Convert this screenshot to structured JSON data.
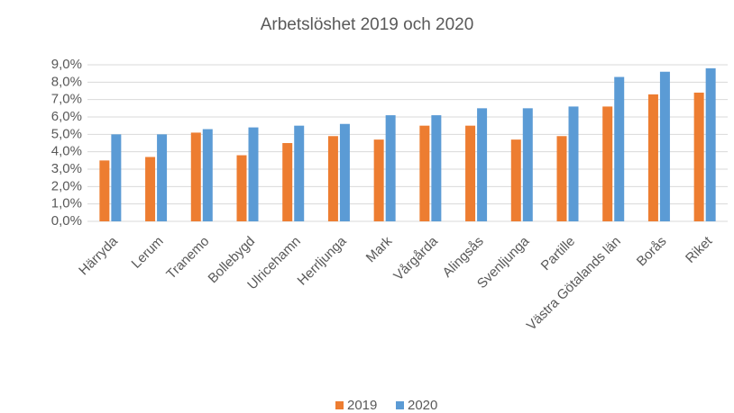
{
  "chart_data": {
    "type": "bar",
    "title": "Arbetslöshet 2019 och 2020",
    "categories": [
      "Härryda",
      "Lerum",
      "Tranemo",
      "Bollebygd",
      "Ulricehamn",
      "Herrljunga",
      "Mark",
      "Vårgårda",
      "Alingsås",
      "Svenljunga",
      "Partille",
      "Västra Götalands län",
      "Borås",
      "Riket"
    ],
    "series": [
      {
        "name": "2019",
        "color": "#ed7d31",
        "values": [
          3.5,
          3.7,
          5.1,
          3.8,
          4.5,
          4.9,
          4.7,
          5.5,
          5.5,
          4.7,
          4.9,
          6.6,
          7.3,
          7.4
        ]
      },
      {
        "name": "2020",
        "color": "#5b9bd5",
        "values": [
          5.0,
          5.0,
          5.3,
          5.4,
          5.5,
          5.6,
          6.1,
          6.1,
          6.5,
          6.5,
          6.6,
          8.3,
          8.6,
          8.8
        ]
      }
    ],
    "ylim": [
      0,
      9
    ],
    "yticks": [
      {
        "value": 0,
        "label": "0,0%"
      },
      {
        "value": 1,
        "label": "1,0%"
      },
      {
        "value": 2,
        "label": "2,0%"
      },
      {
        "value": 3,
        "label": "3,0%"
      },
      {
        "value": 4,
        "label": "4,0%"
      },
      {
        "value": 5,
        "label": "5,0%"
      },
      {
        "value": 6,
        "label": "6,0%"
      },
      {
        "value": 7,
        "label": "7,0%"
      },
      {
        "value": 8,
        "label": "8,0%"
      },
      {
        "value": 9,
        "label": "9,0%"
      }
    ],
    "grid": true,
    "legend": "bottom"
  }
}
